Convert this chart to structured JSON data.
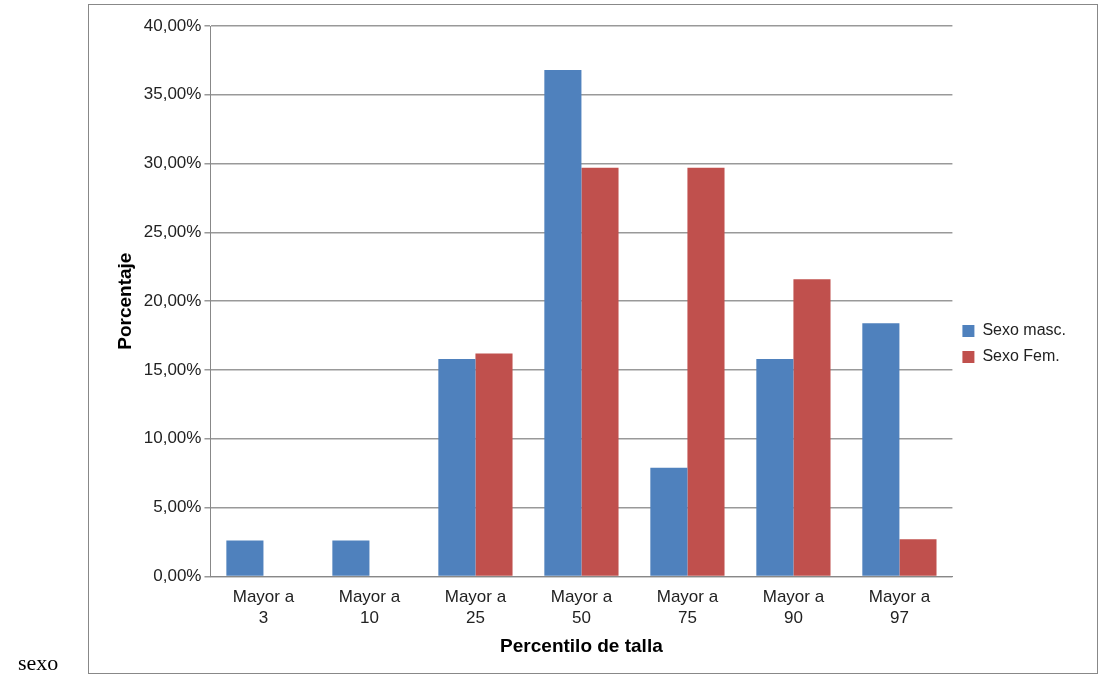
{
  "chart_data": {
    "type": "bar",
    "categories": [
      "Mayor a 3",
      "Mayor a 10",
      "Mayor a 25",
      "Mayor a 50",
      "Mayor a 75",
      "Mayor a 90",
      "Mayor a 97"
    ],
    "series": [
      {
        "name": "Sexo masc.",
        "color": "#4f81bd",
        "values": [
          2.6,
          2.6,
          15.8,
          36.8,
          7.9,
          15.8,
          18.4
        ]
      },
      {
        "name": "Sexo Fem.",
        "color": "#c0504d",
        "values": [
          0,
          0,
          16.2,
          29.7,
          29.7,
          21.6,
          2.7
        ]
      }
    ],
    "xlabel": "Percentilo de talla",
    "ylabel": "Porcentaje",
    "ylim": [
      0,
      40
    ],
    "yticks": [
      {
        "value": 0,
        "label": "0,00%"
      },
      {
        "value": 5,
        "label": "5,00%"
      },
      {
        "value": 10,
        "label": "10,00%"
      },
      {
        "value": 15,
        "label": "15,00%"
      },
      {
        "value": 20,
        "label": "20,00%"
      },
      {
        "value": 25,
        "label": "25,00%"
      },
      {
        "value": 30,
        "label": "30,00%"
      },
      {
        "value": 35,
        "label": "35,00%"
      },
      {
        "value": 40,
        "label": "40,00%"
      }
    ],
    "grid": "y",
    "legend": "right",
    "annotations": [
      "sexo"
    ]
  }
}
